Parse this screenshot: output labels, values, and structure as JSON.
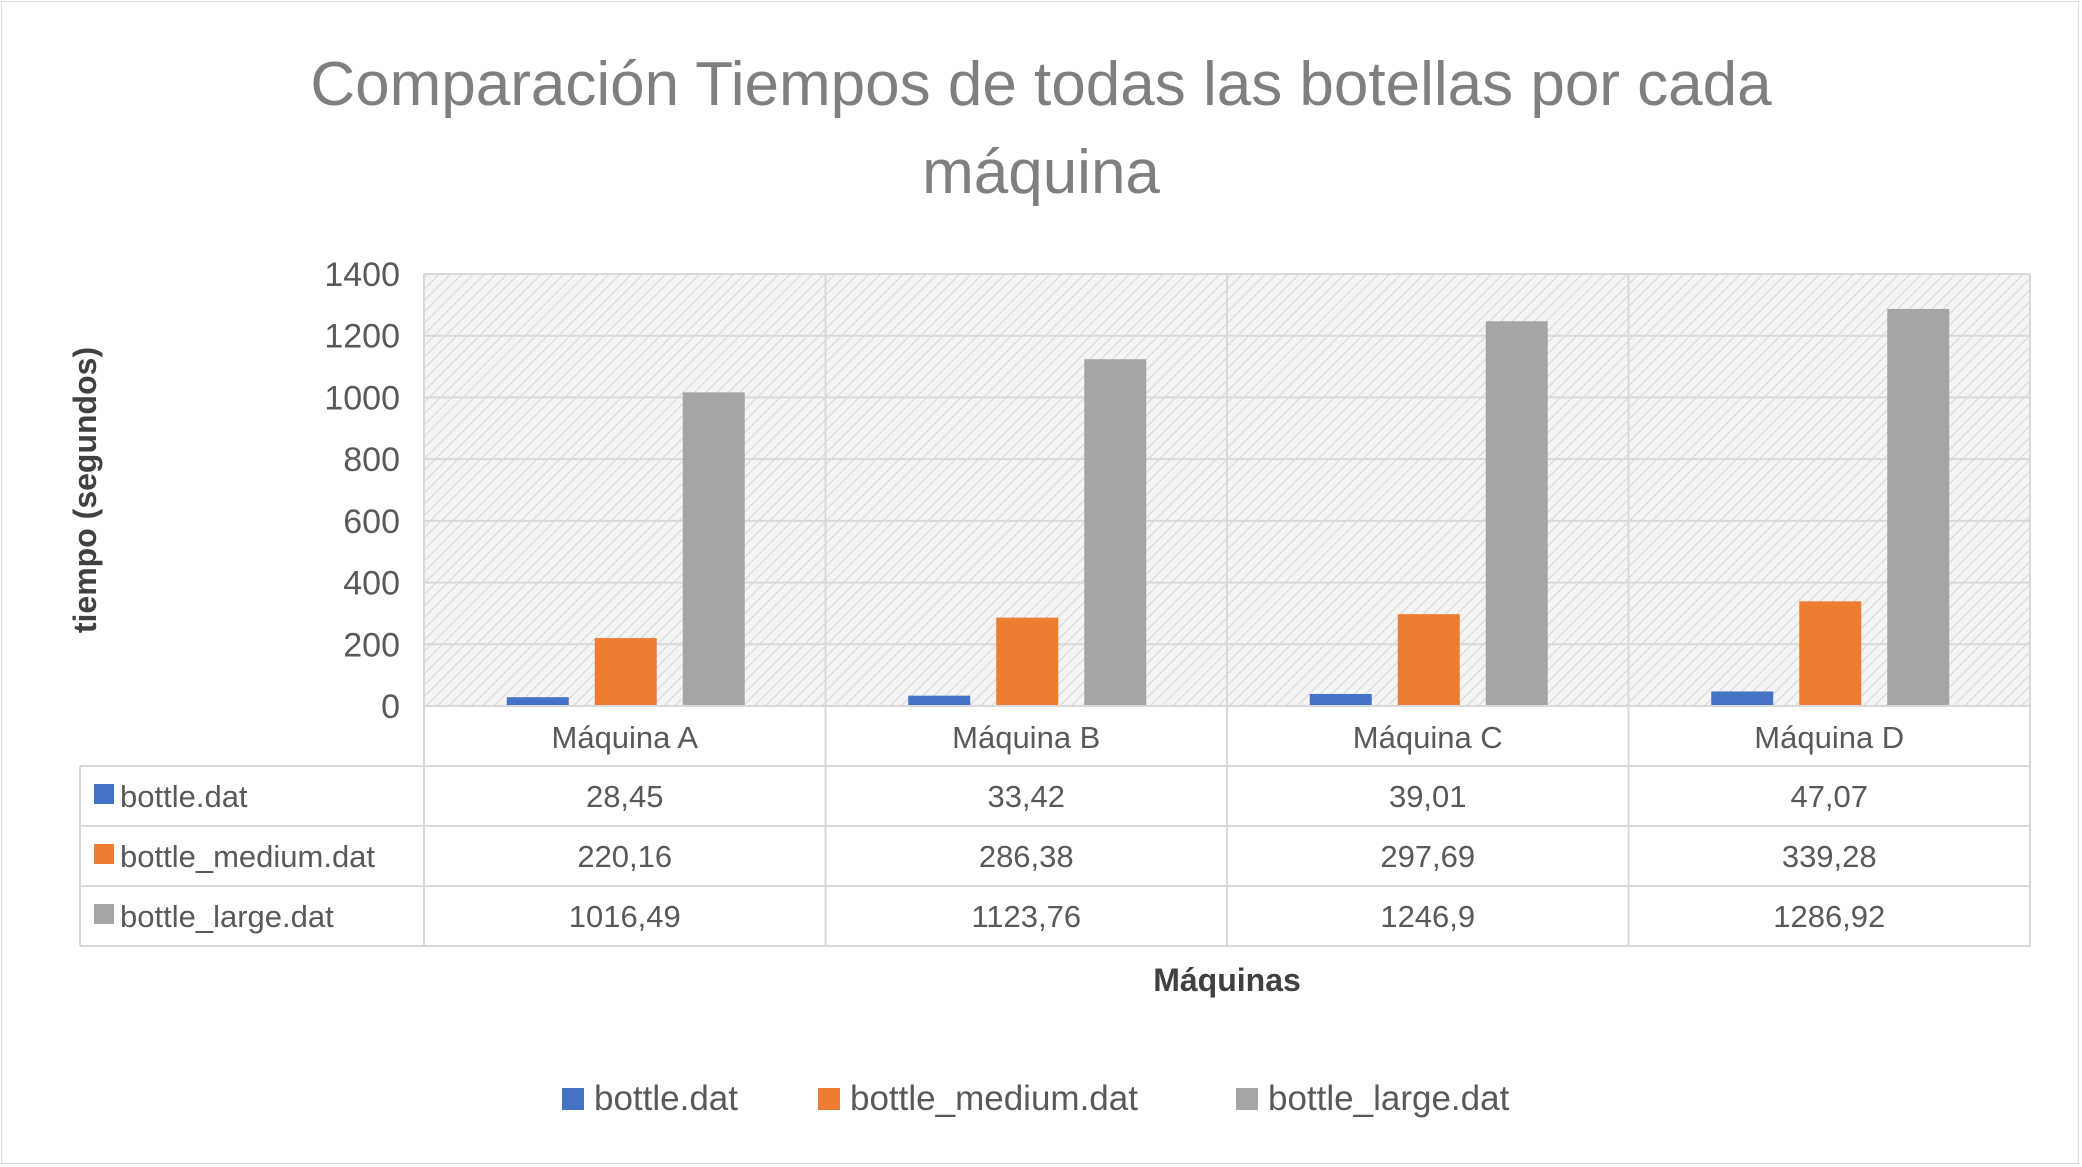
{
  "chart_data": {
    "type": "bar",
    "title": [
      "Comparación Tiempos de todas las botellas por cada",
      "máquina"
    ],
    "xlabel": "Máquinas",
    "ylabel": "tiempo (segundos)",
    "ylim": [
      0,
      1400
    ],
    "yticks": [
      0,
      200,
      400,
      600,
      800,
      1000,
      1200,
      1400
    ],
    "ytick_labels": [
      "0",
      "200",
      "400",
      "600",
      "800",
      "1000",
      "1200",
      "1400"
    ],
    "categories": [
      "Máquina A",
      "Máquina B",
      "Máquina C",
      "Máquina D"
    ],
    "series": [
      {
        "name": "bottle.dat",
        "color": "#4472c4",
        "values": [
          28.45,
          33.42,
          39.01,
          47.07
        ],
        "labels": [
          "28,45",
          "33,42",
          "39,01",
          "47,07"
        ]
      },
      {
        "name": "bottle_medium.dat",
        "color": "#ed7d31",
        "values": [
          220.16,
          286.38,
          297.69,
          339.28
        ],
        "labels": [
          "220,16",
          "286,38",
          "297,69",
          "339,28"
        ]
      },
      {
        "name": "bottle_large.dat",
        "color": "#a5a5a5",
        "values": [
          1016.49,
          1123.76,
          1246.9,
          1286.92
        ],
        "labels": [
          "1016,49",
          "1123,76",
          "1246,9",
          "1286,92"
        ]
      }
    ],
    "grid": true,
    "data_table": true,
    "legend_position": "bottom",
    "plot_background": "hatched light gray"
  }
}
